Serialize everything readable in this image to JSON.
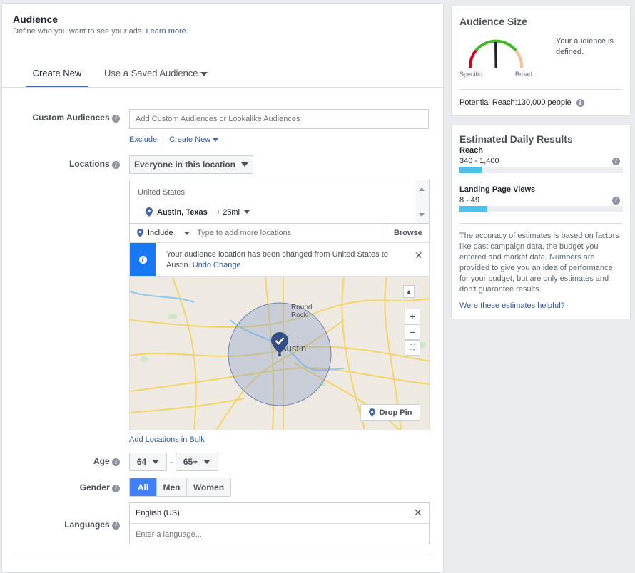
{
  "audience": {
    "title": "Audience",
    "subtitle": "Define who you want to see your ads.",
    "learn_more": "Learn more.",
    "tabs": [
      {
        "label": "Create New"
      },
      {
        "label": "Use a Saved Audience"
      }
    ]
  },
  "custom_audiences": {
    "label": "Custom Audiences",
    "placeholder": "Add Custom Audiences or Lookalike Audiences",
    "exclude": "Exclude",
    "create_new": "Create New"
  },
  "locations": {
    "label": "Locations",
    "dropdown": "Everyone in this location",
    "country": "United States",
    "city": "Austin, Texas",
    "radius": "+ 25mi",
    "include": "Include",
    "placeholder": "Type to add more locations",
    "browse": "Browse",
    "notice": "Your audience location has been changed from United States to Austin.",
    "undo": "Undo Change",
    "map_labels": {
      "city": "Austin",
      "town": "Round Rock"
    },
    "drop_pin": "Drop Pin",
    "add_bulk": "Add Locations in Bulk"
  },
  "age": {
    "label": "Age",
    "min": "64",
    "separator": "-",
    "max": "65+"
  },
  "gender": {
    "label": "Gender",
    "options": [
      "All",
      "Men",
      "Women"
    ],
    "selected": "All"
  },
  "languages": {
    "label": "Languages",
    "selected": "English (US)",
    "placeholder": "Enter a language..."
  },
  "audience_size": {
    "title": "Audience Size",
    "specific": "Specific",
    "broad": "Broad",
    "status": "Your audience is defined.",
    "potential_reach": "Potential Reach:130,000 people"
  },
  "estimated": {
    "title": "Estimated Daily Results",
    "reach_label": "Reach",
    "reach_value": "340 - 1,400",
    "reach_fill": 0.14,
    "lpv_label": "Landing Page Views",
    "lpv_value": "8 - 49",
    "lpv_fill": 0.17,
    "disclaimer": "The accuracy of estimates is based on factors like past campaign data, the budget you entered and market data. Numbers are provided to give you an idea of performance for your budget, but are only estimates and don't guarantee results.",
    "helpful": "Were these estimates helpful?"
  },
  "colors": {
    "accent": "#4267b2",
    "bar": "#4ec0e9",
    "link": "#365899",
    "notice": "#1877f2"
  }
}
